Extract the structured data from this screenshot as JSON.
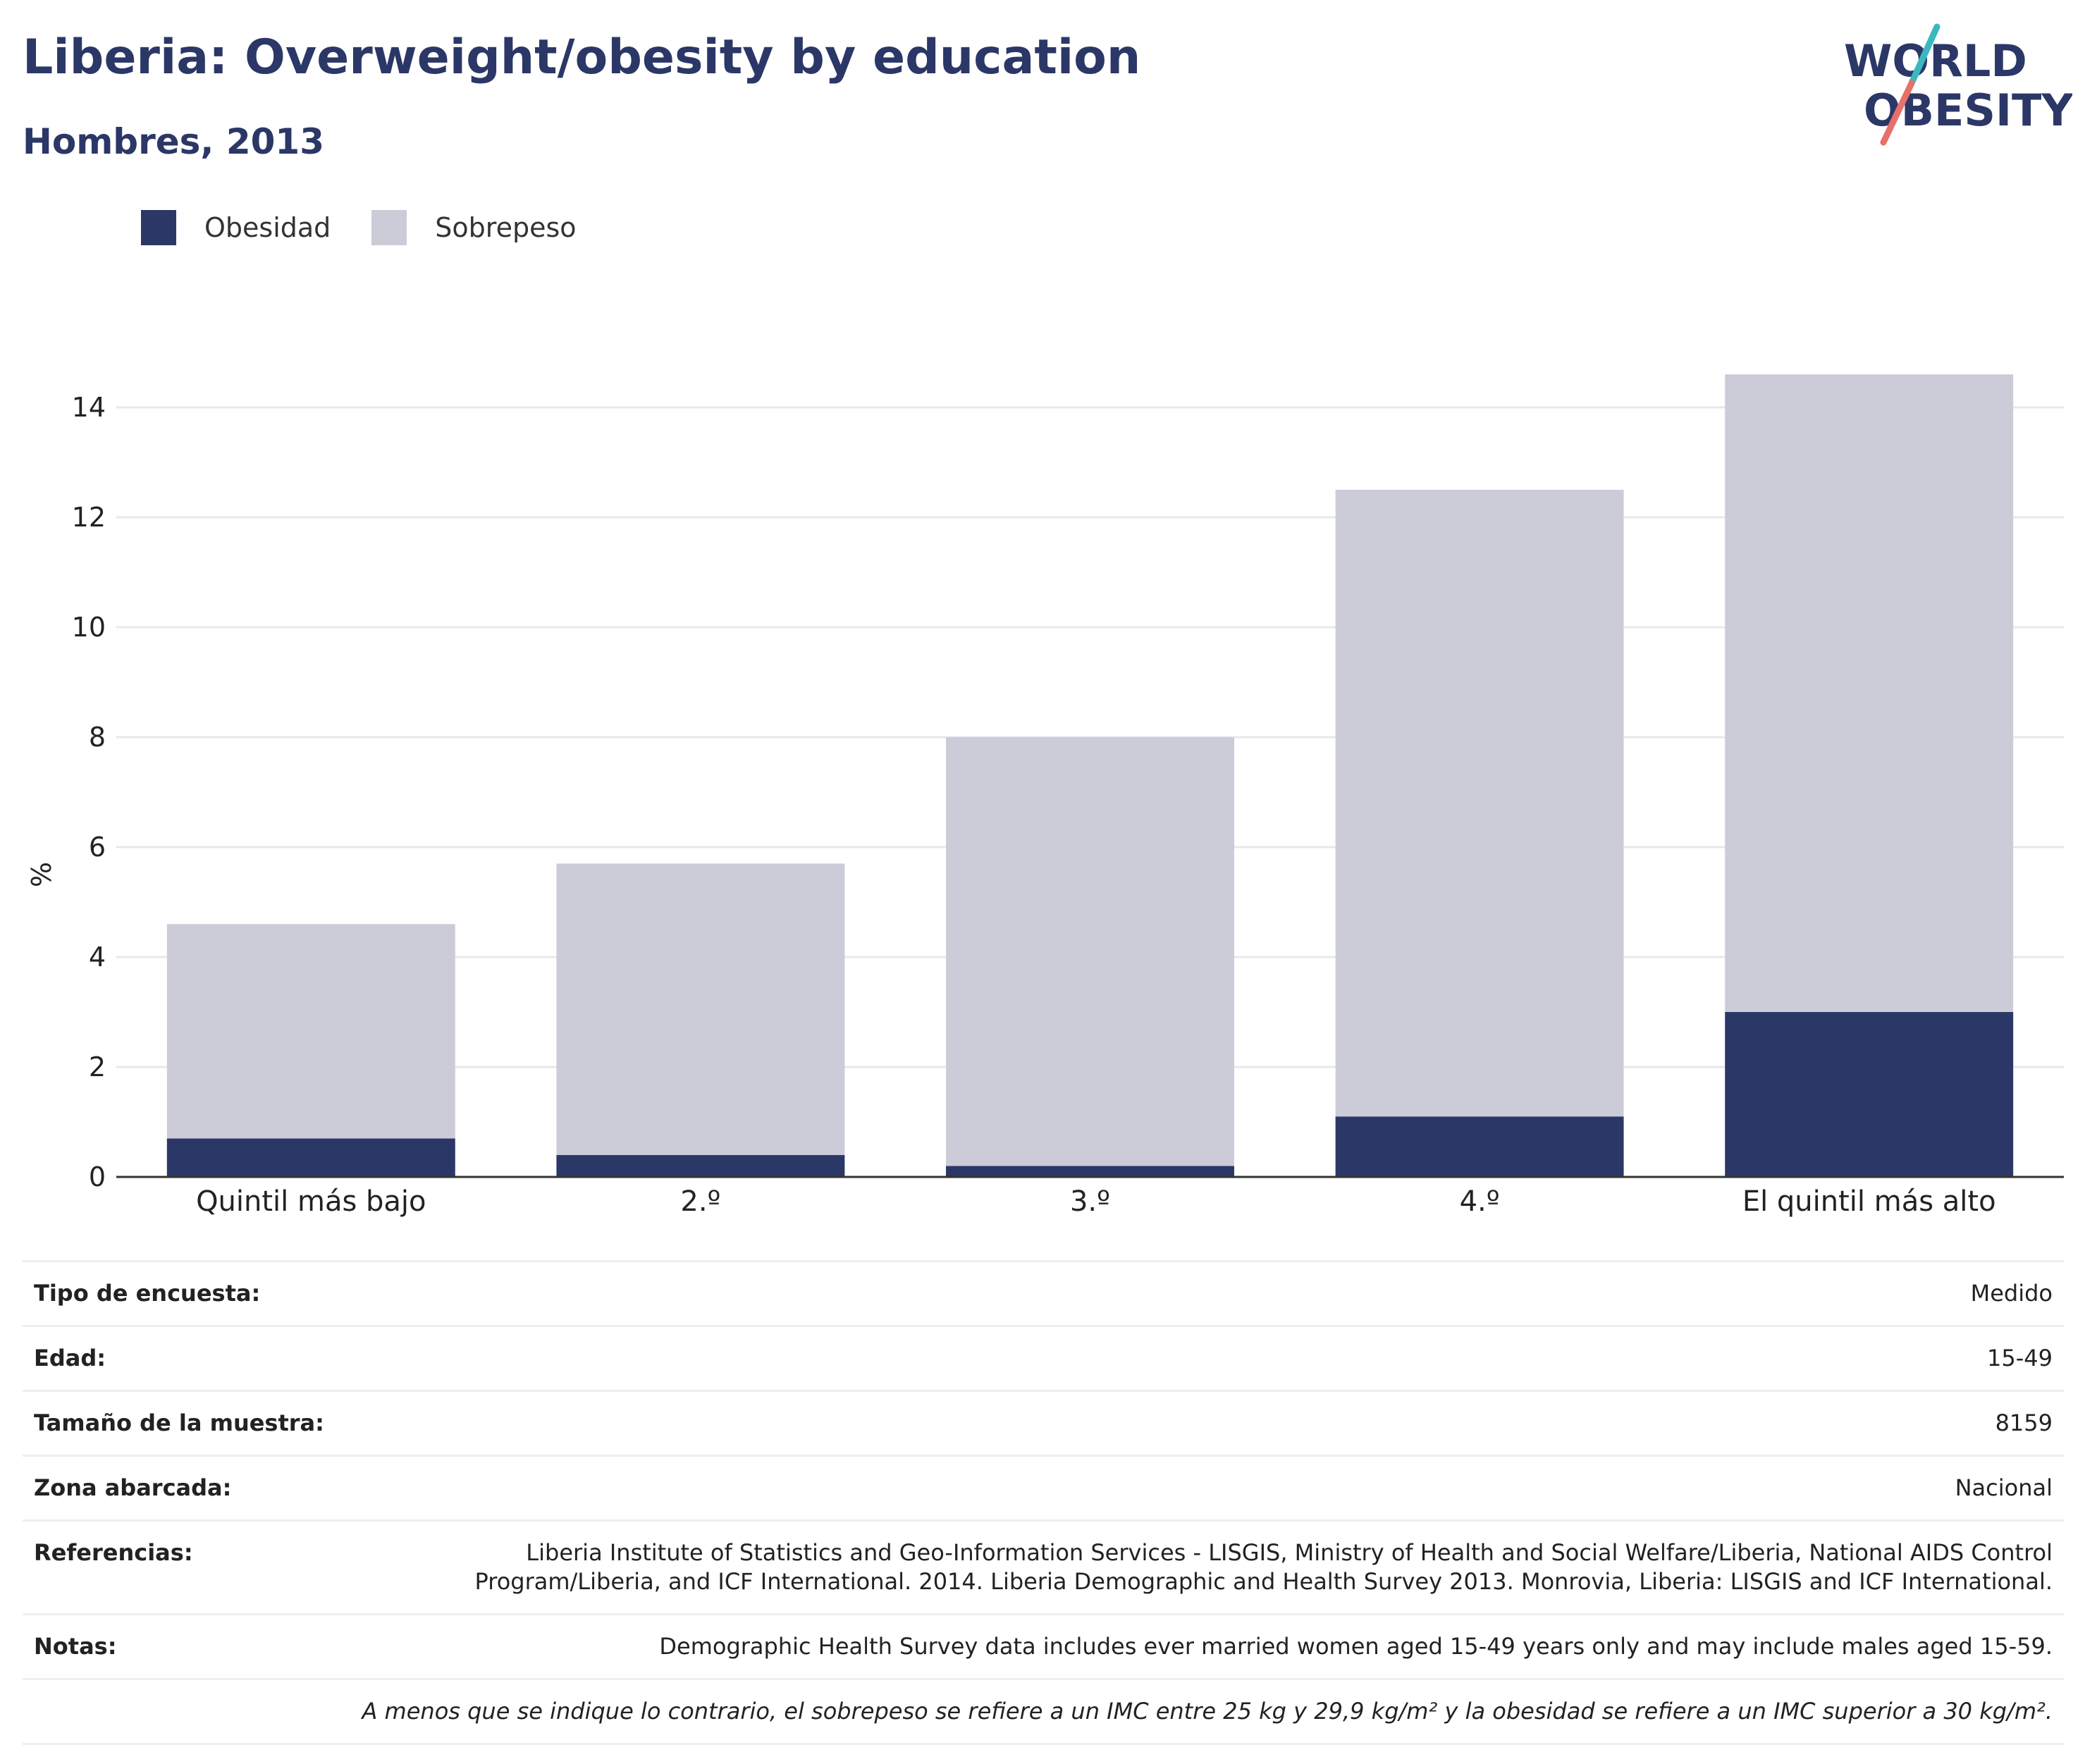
{
  "header": {
    "title": "Liberia: Overweight/obesity by education",
    "subtitle": "Hombres, 2013",
    "logo_line1": "WORLD",
    "logo_line2": "OBESITY"
  },
  "legend": {
    "items": [
      {
        "label": "Obesidad",
        "color": "#2b3766"
      },
      {
        "label": "Sobrepeso",
        "color": "#cbccd8"
      }
    ]
  },
  "chart_data": {
    "type": "bar",
    "stacked": true,
    "categories": [
      "Quintil más bajo",
      "2.º",
      "3.º",
      "4.º",
      "El quintil más alto"
    ],
    "series": [
      {
        "name": "Obesidad",
        "color": "#2b3766",
        "values": [
          0.7,
          0.4,
          0.2,
          1.1,
          3.0
        ]
      },
      {
        "name": "Sobrepeso",
        "color": "#cbccd8",
        "values": [
          3.9,
          5.3,
          7.8,
          11.4,
          11.6
        ]
      }
    ],
    "ylabel": "%",
    "ylim": [
      0,
      15
    ],
    "yticks": [
      0,
      2,
      4,
      6,
      8,
      10,
      12,
      14
    ],
    "grid": true,
    "legend_position": "top-left"
  },
  "info": {
    "rows": [
      {
        "label": "Tipo de encuesta:",
        "value": "Medido"
      },
      {
        "label": "Edad:",
        "value": "15-49"
      },
      {
        "label": "Tamaño de la muestra:",
        "value": "8159"
      },
      {
        "label": "Zona abarcada:",
        "value": "Nacional"
      },
      {
        "label": "Referencias:",
        "value": "Liberia Institute of Statistics and Geo-Information Services - LISGIS, Ministry of Health and Social Welfare/Liberia, National AIDS Control Program/Liberia, and ICF International. 2014. Liberia Demographic and Health Survey 2013. Monrovia, Liberia: LISGIS and ICF International."
      },
      {
        "label": "Notas:",
        "value": "Demographic Health Survey data includes ever married women aged 15-49 years only and may include males aged 15-59."
      }
    ],
    "footnote": "A menos que se indique lo contrario, el sobrepeso se refiere a un IMC entre 25 kg y 29,9 kg/m² y la obesidad se refiere a un IMC superior a 30 kg/m²."
  }
}
